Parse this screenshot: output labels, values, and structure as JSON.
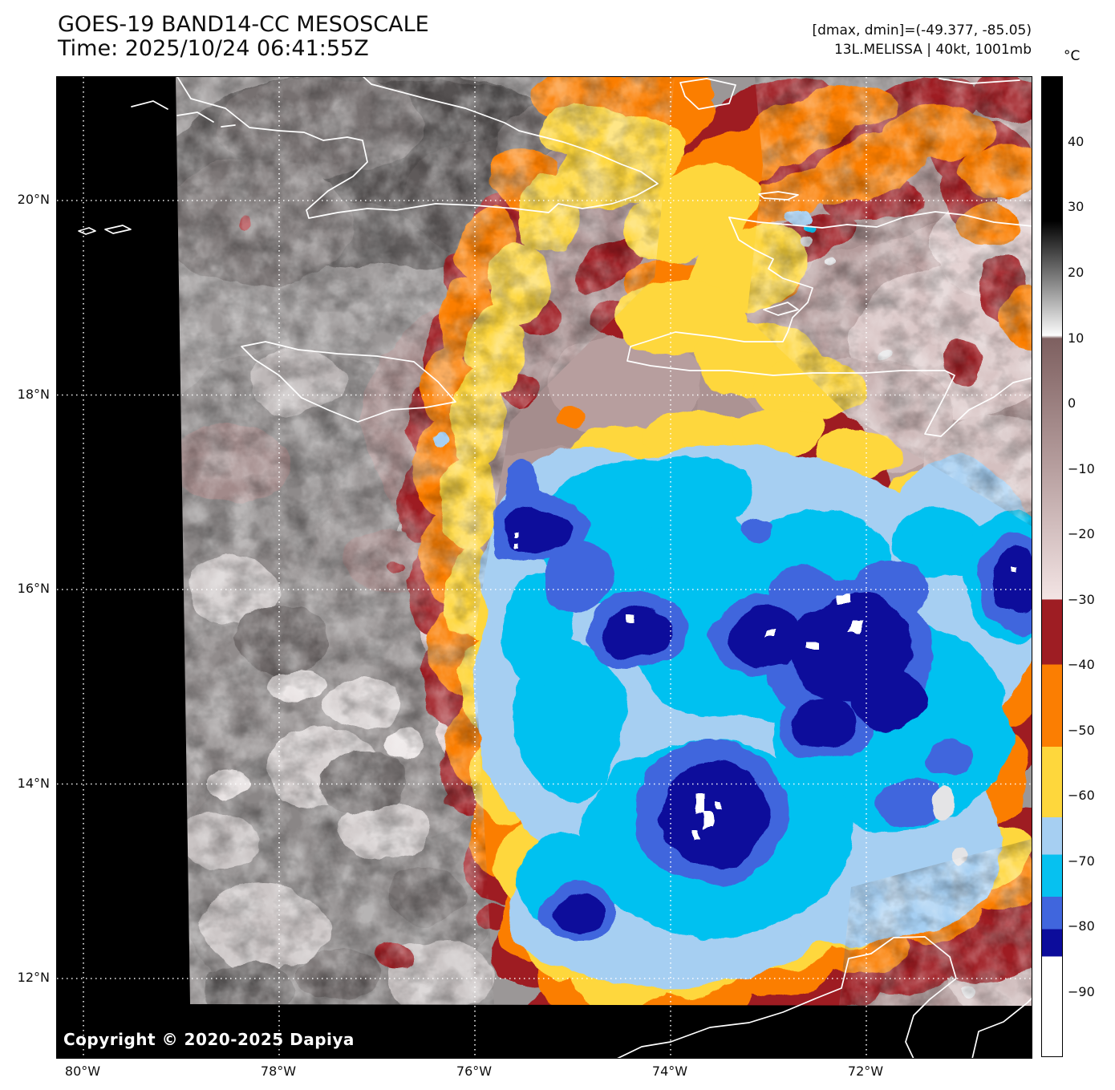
{
  "header": {
    "title": "GOES-19 BAND14-CC MESOSCALE",
    "time_line": "Time: 2025/10/24 06:41:55Z",
    "dmax_dmin": "[dmax, dmin]=(-49.377, -85.05)",
    "storm_info": "13L.MELISSA | 40kt, 1001mb"
  },
  "map": {
    "copyright": "Copyright © 2020-2025 Dapiya",
    "x_axis": {
      "labels": [
        "80°W",
        "78°W",
        "76°W",
        "74°W",
        "72°W"
      ]
    },
    "y_axis": {
      "labels": [
        "20°N",
        "18°N",
        "16°N",
        "14°N",
        "12°N"
      ]
    },
    "gridline_style": "white dotted",
    "coastline_color": "#ffffff",
    "no_data_color": "#000000"
  },
  "colorbar": {
    "unit": "°C",
    "tick_labels": [
      "40",
      "30",
      "20",
      "10",
      "0",
      "−10",
      "−20",
      "−30",
      "−40",
      "−50",
      "−60",
      "−70",
      "−80",
      "−90"
    ],
    "tick_values": [
      40,
      30,
      20,
      10,
      0,
      -10,
      -20,
      -30,
      -40,
      -50,
      -60,
      -70,
      -80,
      -90
    ],
    "scale_top_c": 50,
    "scale_bottom_c": -100,
    "palette": [
      {
        "range_c": "50 to 28",
        "color": "#000000"
      },
      {
        "range_c": "28 to 10",
        "color": "gradient #0b0b0b to #fbfbfb"
      },
      {
        "range_c": "10 to -30",
        "color": "gradient #7e6060 to #f3e4e4"
      },
      {
        "range_c": "-30 to -40",
        "color": "#9e1d23"
      },
      {
        "range_c": "-40 to -52.5",
        "color": "#fb7e02"
      },
      {
        "range_c": "-52.5 to -63",
        "color": "#fed73c"
      },
      {
        "range_c": "-63 to -69",
        "color": "#a6cff2"
      },
      {
        "range_c": "-69 to -75.5",
        "color": "#06c1f0"
      },
      {
        "range_c": "-75.5 to -80.5",
        "color": "#4066dd"
      },
      {
        "range_c": "-80.5 to -84.5",
        "color": "#0c0c9b"
      },
      {
        "range_c": "-84.5 to -100",
        "color": "#ffffff"
      }
    ]
  }
}
